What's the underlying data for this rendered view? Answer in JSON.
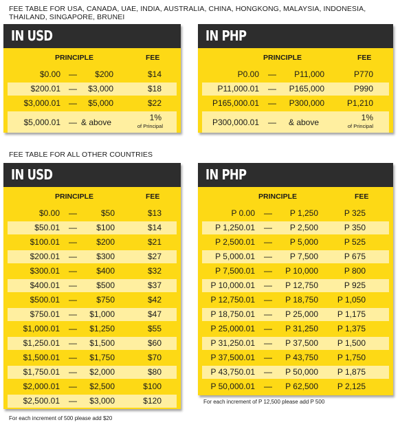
{
  "heading_top": "FEE TABLE FOR USA, CANADA, UAE, INDIA, AUSTRALIA, CHINA, HONGKONG, MALAYSIA, INDONESIA, THAILAND, SINGAPORE, BRUNEI",
  "heading_other": "FEE TABLE FOR ALL OTHER COUNTRIES",
  "tables": {
    "usd_top": {
      "title": "IN USD",
      "col_principle": "PRINCIPLE",
      "col_fee": "FEE",
      "rows": [
        {
          "from": "$0.00",
          "dash": "—",
          "to": "$200",
          "fee": "$14"
        },
        {
          "from": "$200.01",
          "dash": "—",
          "to": "$3,000",
          "fee": "$18"
        },
        {
          "from": "$3,000.01",
          "dash": "—",
          "to": "$5,000",
          "fee": "$22"
        }
      ],
      "last_row": {
        "from": "$5,000.01",
        "dash": "—",
        "to": "& above",
        "fee": "1%",
        "fee_sub": "of Principal"
      }
    },
    "php_top": {
      "title": "IN PHP",
      "col_principle": "PRINCIPLE",
      "col_fee": "FEE",
      "rows": [
        {
          "from": "P0.00",
          "dash": "—",
          "to": "P11,000",
          "fee": "P770"
        },
        {
          "from": "P11,000.01",
          "dash": "—",
          "to": "P165,000",
          "fee": "P990"
        },
        {
          "from": "P165,000.01",
          "dash": "—",
          "to": "P300,000",
          "fee": "P1,210"
        }
      ],
      "last_row": {
        "from": "P300,000.01",
        "dash": "—",
        "to": "& above",
        "fee": "1%",
        "fee_sub": "of Principal"
      }
    },
    "usd_other": {
      "title": "IN USD",
      "col_principle": "PRINCIPLE",
      "col_fee": "FEE",
      "rows": [
        {
          "from": "$0.00",
          "dash": "—",
          "to": "$50",
          "fee": "$13"
        },
        {
          "from": "$50.01",
          "dash": "—",
          "to": "$100",
          "fee": "$14"
        },
        {
          "from": "$100.01",
          "dash": "—",
          "to": "$200",
          "fee": "$21"
        },
        {
          "from": "$200.01",
          "dash": "—",
          "to": "$300",
          "fee": "$27"
        },
        {
          "from": "$300.01",
          "dash": "—",
          "to": "$400",
          "fee": "$32"
        },
        {
          "from": "$400.01",
          "dash": "—",
          "to": "$500",
          "fee": "$37"
        },
        {
          "from": "$500.01",
          "dash": "—",
          "to": "$750",
          "fee": "$42"
        },
        {
          "from": "$750.01",
          "dash": "—",
          "to": "$1,000",
          "fee": "$47"
        },
        {
          "from": "$1,000.01",
          "dash": "—",
          "to": "$1,250",
          "fee": "$55"
        },
        {
          "from": "$1,250.01",
          "dash": "—",
          "to": "$1,500",
          "fee": "$60"
        },
        {
          "from": "$1,500.01",
          "dash": "—",
          "to": "$1,750",
          "fee": "$70"
        },
        {
          "from": "$1,750.01",
          "dash": "—",
          "to": "$2,000",
          "fee": "$80"
        },
        {
          "from": "$2,000.01",
          "dash": "—",
          "to": "$2,500",
          "fee": "$100"
        },
        {
          "from": "$2,500.01",
          "dash": "—",
          "to": "$3,000",
          "fee": "$120"
        }
      ],
      "note": "For each increment of 500 please add $20"
    },
    "php_other": {
      "title": "IN PHP",
      "col_principle": "PRINCIPLE",
      "col_fee": "FEE",
      "rows": [
        {
          "from": "P 0.00",
          "dash": "—",
          "to": "P 1,250",
          "fee": "P 325"
        },
        {
          "from": "P 1,250.01",
          "dash": "—",
          "to": "P 2,500",
          "fee": "P 350"
        },
        {
          "from": "P 2,500.01",
          "dash": "—",
          "to": "P 5,000",
          "fee": "P 525"
        },
        {
          "from": "P 5,000.01",
          "dash": "—",
          "to": "P 7,500",
          "fee": "P 675"
        },
        {
          "from": "P 7,500.01",
          "dash": "—",
          "to": "P 10,000",
          "fee": "P 800"
        },
        {
          "from": "P 10,000.01",
          "dash": "—",
          "to": "P 12,750",
          "fee": "P 925"
        },
        {
          "from": "P 12,750.01",
          "dash": "—",
          "to": "P 18,750",
          "fee": "P 1,050"
        },
        {
          "from": "P 18,750.01",
          "dash": "—",
          "to": "P 25,000",
          "fee": "P 1,175"
        },
        {
          "from": "P 25,000.01",
          "dash": "—",
          "to": "P 31,250",
          "fee": "P 1,375"
        },
        {
          "from": "P 31,250.01",
          "dash": "—",
          "to": "P 37,500",
          "fee": "P 1,500"
        },
        {
          "from": "P 37,500.01",
          "dash": "—",
          "to": "P 43,750",
          "fee": "P 1,750"
        },
        {
          "from": "P 43,750.01",
          "dash": "—",
          "to": "P 50,000",
          "fee": "P 1,875"
        },
        {
          "from": "P 50,000.01",
          "dash": "—",
          "to": "P 62,500",
          "fee": "P 2,125"
        }
      ],
      "note": "For each increment of P 12,500 please add P 500"
    }
  },
  "colors": {
    "card_bg": "#fdd915",
    "stripe": "#ffefa0",
    "title_bg": "#2d2d2d",
    "title_text": "#ffffff"
  }
}
